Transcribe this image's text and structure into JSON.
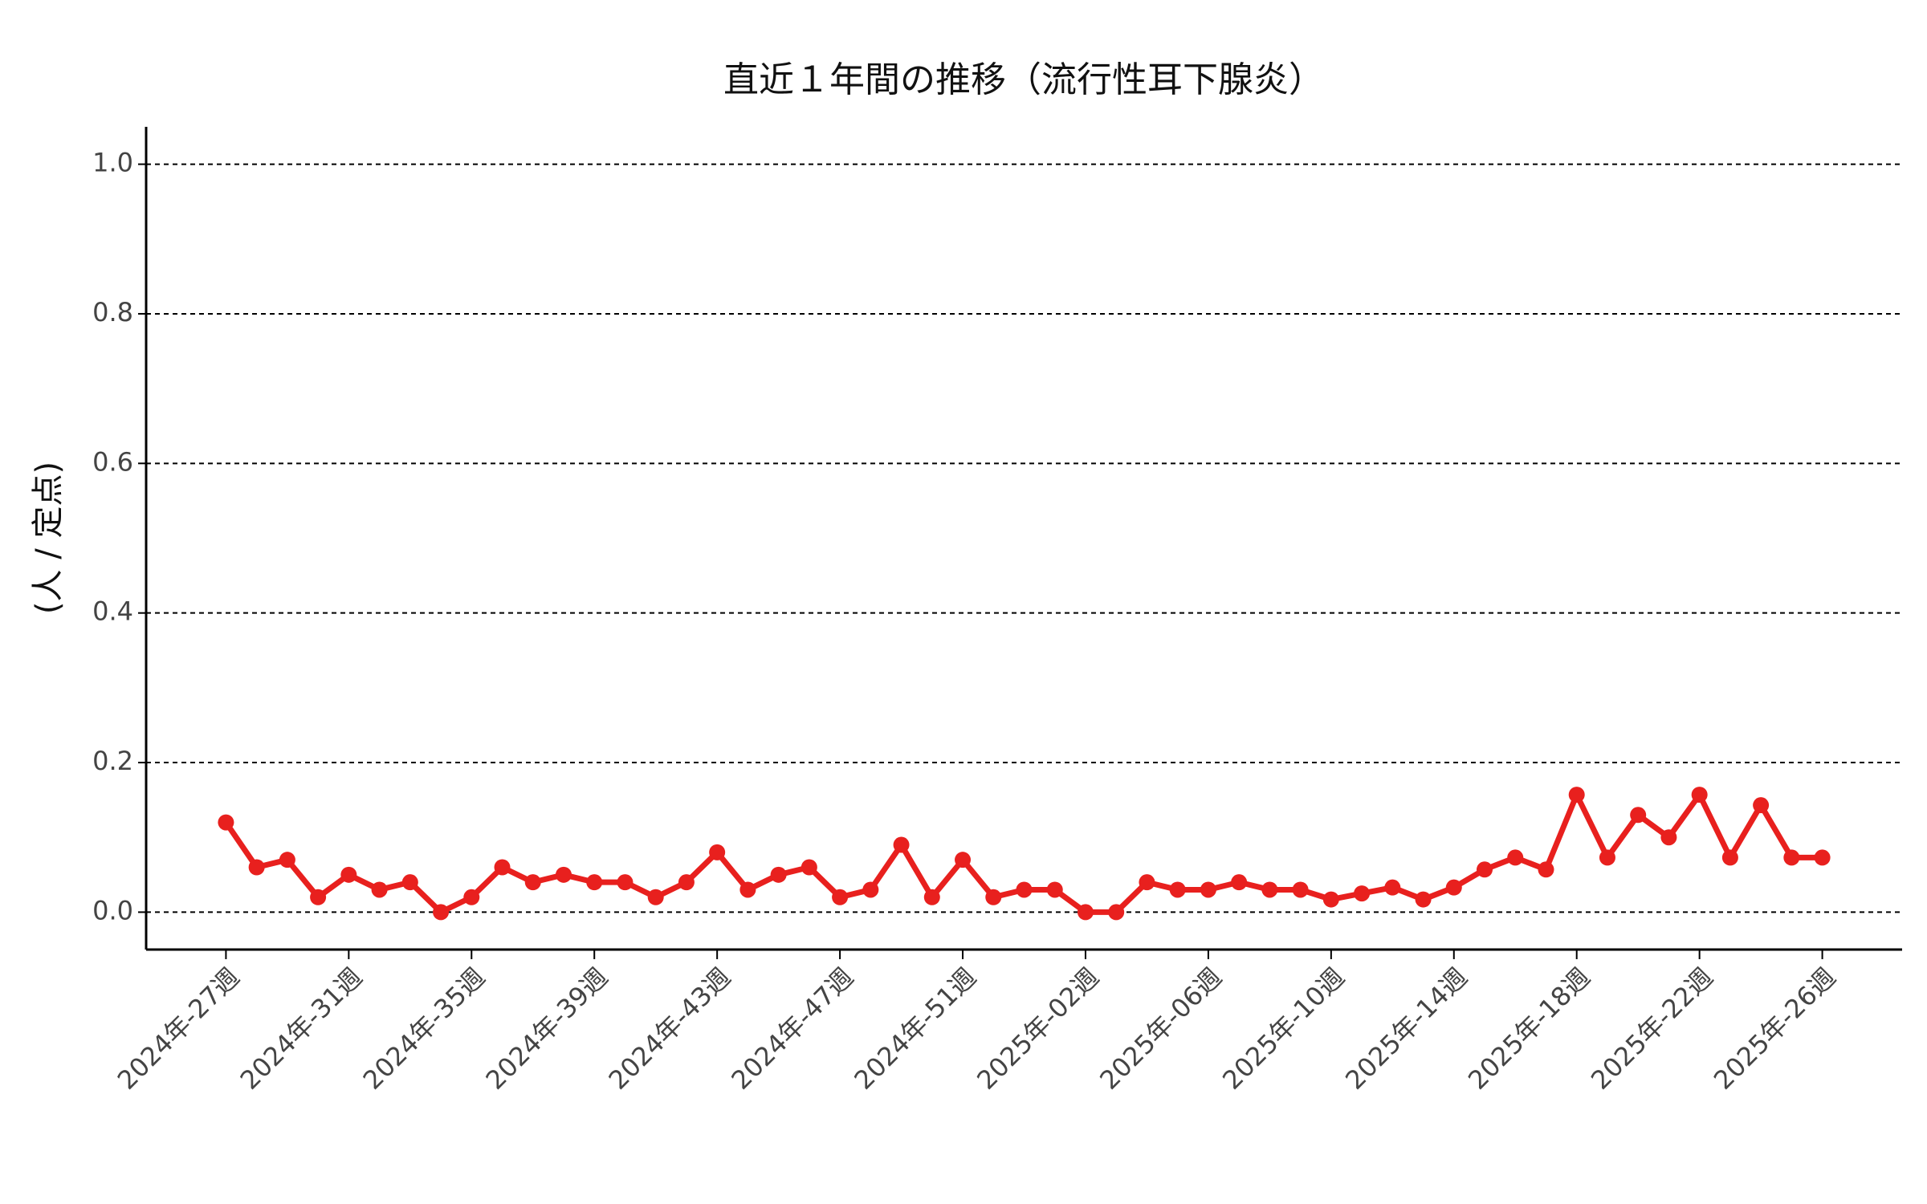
{
  "chart_data": {
    "type": "line",
    "title": "直近１年間の推移（流行性耳下腺炎）",
    "y_label": "(人 / 定点)",
    "categories": [
      "2024年-27週",
      null,
      null,
      null,
      "2024年-31週",
      null,
      null,
      null,
      "2024年-35週",
      null,
      null,
      null,
      "2024年-39週",
      null,
      null,
      null,
      "2024年-43週",
      null,
      null,
      null,
      "2024年-47週",
      null,
      null,
      null,
      "2024年-51週",
      null,
      null,
      null,
      "2025年-02週",
      null,
      null,
      null,
      "2025年-06週",
      null,
      null,
      null,
      "2025年-10週",
      null,
      null,
      null,
      "2025年-14週",
      null,
      null,
      null,
      "2025年-18週",
      null,
      null,
      null,
      "2025年-22週",
      null,
      null,
      null,
      "2025年-26週"
    ],
    "series": [
      {
        "name": "流行性耳下腺炎",
        "color": "#e8201e",
        "values": [
          0.12,
          0.06,
          0.07,
          0.02,
          0.05,
          0.03,
          0.04,
          0,
          0.02,
          0.06,
          0.04,
          0.05,
          0.04,
          0.04,
          0.02,
          0.04,
          0.08,
          0.03,
          0.05,
          0.06,
          0.02,
          0.03,
          0.09,
          0.02,
          0.07,
          0.02,
          0.03,
          0.03,
          0,
          0,
          0.04,
          0.03,
          0.03,
          0.04,
          0.03,
          0.03,
          0.017,
          0.025,
          0.033,
          0.017,
          0.033,
          0.057,
          0.073,
          0.057,
          0.157,
          0.073,
          0.13,
          0.1,
          0.157,
          0.073,
          0.143,
          0.073,
          0.073
        ]
      }
    ],
    "ylim": [
      -0.05,
      1.05
    ],
    "yticks": [
      {
        "value": 0,
        "label": "0.0"
      },
      {
        "value": 0.2,
        "label": "0.2"
      },
      {
        "value": 0.4,
        "label": "0.4"
      },
      {
        "value": 0.6,
        "label": "0.6"
      },
      {
        "value": 0.8,
        "label": "0.8"
      },
      {
        "value": 1,
        "label": "1.0"
      }
    ],
    "grid": true
  }
}
